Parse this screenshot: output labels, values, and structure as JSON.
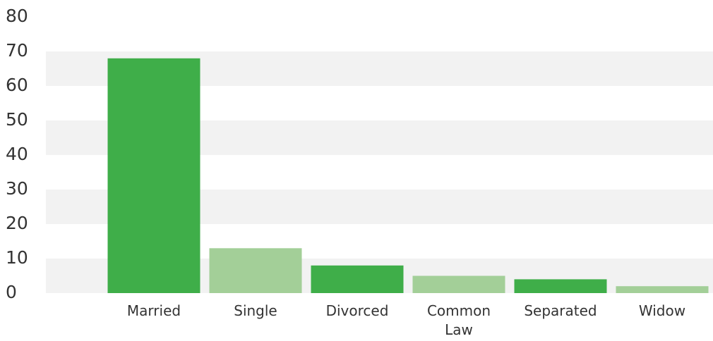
{
  "chart_data": {
    "type": "bar",
    "categories": [
      "Married",
      "Single",
      "Divorced",
      "Common Law",
      "Separated",
      "Widow"
    ],
    "values": [
      68,
      13,
      8,
      5,
      4,
      2
    ],
    "colors": [
      "#3fae49",
      "#a3cf98",
      "#3fae49",
      "#a3cf98",
      "#3fae49",
      "#a3cf98"
    ],
    "ylim": [
      0,
      80
    ],
    "yticks": [
      0,
      10,
      20,
      30,
      40,
      50,
      60,
      70,
      80
    ],
    "grid": true,
    "grid_color": "#f2f2f2"
  }
}
